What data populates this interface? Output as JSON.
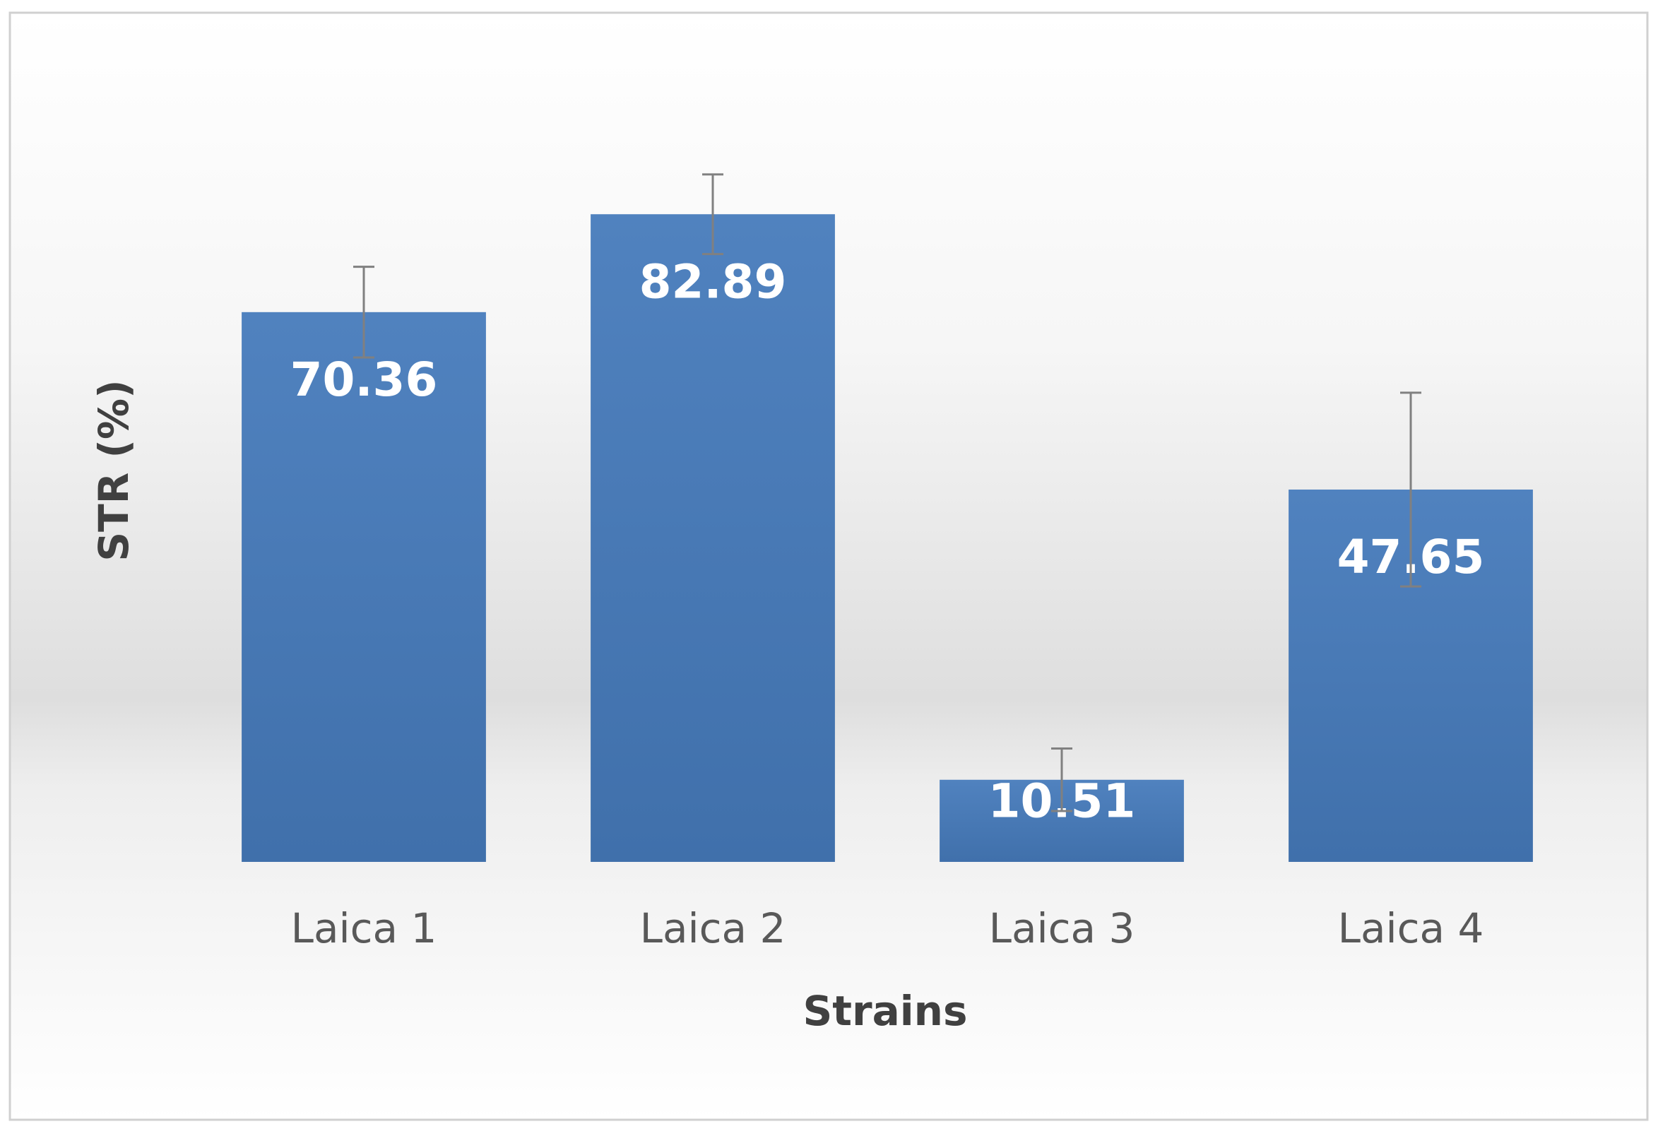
{
  "chart_data": {
    "type": "bar",
    "x_label": "Strains",
    "y_label": "STR (%)",
    "categories": [
      "Laica 1",
      "Laica 2",
      "Laica 3",
      "Laica 4"
    ],
    "values": [
      70.36,
      82.89,
      10.51,
      47.65
    ],
    "errors": [
      5.8,
      5.1,
      4.0,
      12.4
    ],
    "color": "#4a7bb9",
    "error_color": "#808080",
    "ylim": [
      0,
      100
    ]
  }
}
